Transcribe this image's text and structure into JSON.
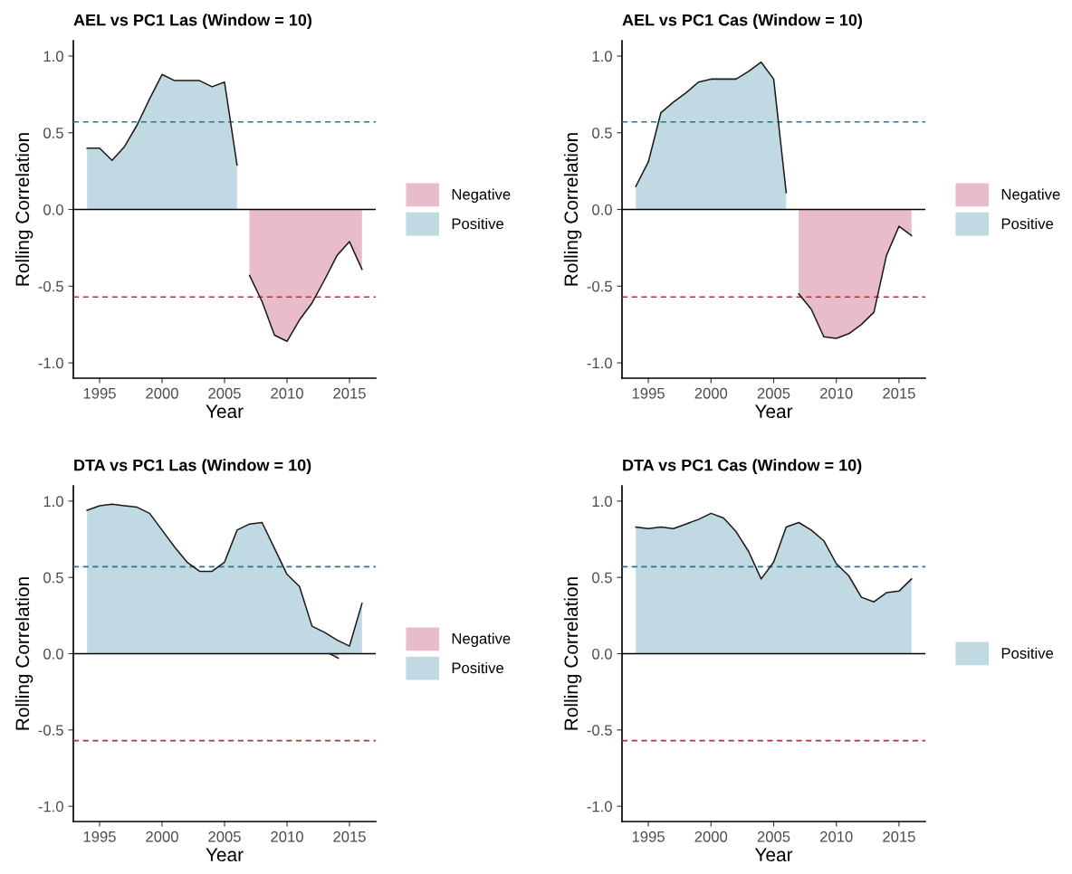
{
  "chart_data": [
    {
      "type": "area",
      "title": "AEL vs PC1 Las (Window = 10)",
      "xlabel": "Year",
      "ylabel": "Rolling Correlation",
      "x": [
        1994,
        1995,
        1996,
        1997,
        1998,
        1999,
        2000,
        2001,
        2002,
        2003,
        2004,
        2005,
        2006,
        2007,
        2008,
        2009,
        2010,
        2011,
        2012,
        2013,
        2014,
        2015,
        2016
      ],
      "series": [
        {
          "name": "Negative",
          "color": "#e8bccb",
          "values": [
            null,
            null,
            null,
            null,
            null,
            null,
            null,
            null,
            null,
            null,
            null,
            null,
            null,
            -0.43,
            -0.6,
            -0.82,
            -0.86,
            -0.72,
            -0.61,
            -0.46,
            -0.3,
            -0.21,
            -0.39
          ]
        },
        {
          "name": "Positive",
          "color": "#c0d9e3",
          "values": [
            0.4,
            0.4,
            0.32,
            0.41,
            0.55,
            0.72,
            0.88,
            0.84,
            0.84,
            0.84,
            0.8,
            0.83,
            0.29,
            null,
            null,
            null,
            null,
            null,
            null,
            null,
            null,
            null,
            null
          ]
        }
      ],
      "xlim": [
        1992.9,
        2017.1
      ],
      "ylim": [
        -1.1,
        1.1
      ],
      "xticks": [
        1995,
        2000,
        2005,
        2010,
        2015
      ],
      "yticks": [
        {
          "value": -1.0,
          "label": "-1.0"
        },
        {
          "value": -0.5,
          "label": "-0.5"
        },
        {
          "value": 0.0,
          "label": "0.0"
        },
        {
          "value": 0.5,
          "label": "0.5"
        },
        {
          "value": 1.0,
          "label": "1.0"
        }
      ],
      "ref_lines": [
        {
          "axis": "y",
          "value": 0.57,
          "color": "#2a7394",
          "line_style": "dashed"
        },
        {
          "axis": "y",
          "value": -0.57,
          "color": "#a83a3a",
          "line_style": "dashed"
        },
        {
          "axis": "y",
          "value": 0,
          "color": "#000000",
          "line_style": "solid"
        }
      ],
      "grid": false,
      "legend": "right"
    },
    {
      "type": "area",
      "title": "AEL vs PC1 Cas (Window = 10)",
      "xlabel": "Year",
      "ylabel": "Rolling Correlation",
      "x": [
        1994,
        1995,
        1996,
        1997,
        1998,
        1999,
        2000,
        2001,
        2002,
        2003,
        2004,
        2005,
        2006,
        2007,
        2008,
        2009,
        2010,
        2011,
        2012,
        2013,
        2014,
        2015,
        2016
      ],
      "series": [
        {
          "name": "Negative",
          "color": "#e8bccb",
          "values": [
            null,
            null,
            null,
            null,
            null,
            null,
            null,
            null,
            null,
            null,
            null,
            null,
            null,
            -0.55,
            -0.65,
            -0.83,
            -0.84,
            -0.81,
            -0.75,
            -0.67,
            -0.3,
            -0.11,
            -0.17
          ]
        },
        {
          "name": "Positive",
          "color": "#c0d9e3",
          "values": [
            0.15,
            0.31,
            0.63,
            0.7,
            0.76,
            0.83,
            0.85,
            0.85,
            0.85,
            0.9,
            0.96,
            0.85,
            0.11,
            null,
            null,
            null,
            null,
            null,
            null,
            null,
            null,
            null,
            null
          ]
        }
      ],
      "xlim": [
        1992.9,
        2017.1
      ],
      "ylim": [
        -1.1,
        1.1
      ],
      "xticks": [
        1995,
        2000,
        2005,
        2010,
        2015
      ],
      "yticks": [
        {
          "value": -1.0,
          "label": "-1.0"
        },
        {
          "value": -0.5,
          "label": "-0.5"
        },
        {
          "value": 0.0,
          "label": "0.0"
        },
        {
          "value": 0.5,
          "label": "0.5"
        },
        {
          "value": 1.0,
          "label": "1.0"
        }
      ],
      "ref_lines": [
        {
          "axis": "y",
          "value": 0.57,
          "color": "#2a7394",
          "line_style": "dashed"
        },
        {
          "axis": "y",
          "value": -0.57,
          "color": "#a83a3a",
          "line_style": "dashed"
        },
        {
          "axis": "y",
          "value": 0,
          "color": "#000000",
          "line_style": "solid"
        }
      ],
      "grid": false,
      "legend": "right"
    },
    {
      "type": "area",
      "title": "DTA vs PC1 Las (Window = 10)",
      "xlabel": "Year",
      "ylabel": "Rolling Correlation",
      "x": [
        1994,
        1995,
        1996,
        1997,
        1998,
        1999,
        2000,
        2001,
        2002,
        2003,
        2004,
        2005,
        2006,
        2007,
        2008,
        2009,
        2010,
        2011,
        2012,
        2013,
        2014,
        2015,
        2016
      ],
      "series": [
        {
          "name": "Negative",
          "color": "#e8bccb",
          "x": [
            2013.4,
            2014.1
          ],
          "values": [
            0.0,
            -0.03
          ]
        },
        {
          "name": "Positive",
          "color": "#c0d9e3",
          "values": [
            0.94,
            0.97,
            0.98,
            0.97,
            0.96,
            0.92,
            0.81,
            0.7,
            0.6,
            0.54,
            0.54,
            0.6,
            0.81,
            0.85,
            0.86,
            0.69,
            0.52,
            0.44,
            0.18,
            0.14,
            0.09,
            0.05,
            0.33
          ]
        }
      ],
      "xlim": [
        1992.9,
        2017.1
      ],
      "ylim": [
        -1.1,
        1.1
      ],
      "xticks": [
        1995,
        2000,
        2005,
        2010,
        2015
      ],
      "yticks": [
        {
          "value": -1.0,
          "label": "-1.0"
        },
        {
          "value": -0.5,
          "label": "-0.5"
        },
        {
          "value": 0.0,
          "label": "0.0"
        },
        {
          "value": 0.5,
          "label": "0.5"
        },
        {
          "value": 1.0,
          "label": "1.0"
        }
      ],
      "ref_lines": [
        {
          "axis": "y",
          "value": 0.57,
          "color": "#2a7394",
          "line_style": "dashed"
        },
        {
          "axis": "y",
          "value": -0.57,
          "color": "#a83a3a",
          "line_style": "dashed"
        },
        {
          "axis": "y",
          "value": 0,
          "color": "#000000",
          "line_style": "solid"
        }
      ],
      "grid": false,
      "legend": "right"
    },
    {
      "type": "area",
      "title": "DTA vs PC1 Cas (Window = 10)",
      "xlabel": "Year",
      "ylabel": "Rolling Correlation",
      "x": [
        1994,
        1995,
        1996,
        1997,
        1998,
        1999,
        2000,
        2001,
        2002,
        2003,
        2004,
        2005,
        2006,
        2007,
        2008,
        2009,
        2010,
        2011,
        2012,
        2013,
        2014,
        2015,
        2016
      ],
      "series": [
        {
          "name": "Positive",
          "color": "#c0d9e3",
          "values": [
            0.83,
            0.82,
            0.83,
            0.82,
            0.85,
            0.88,
            0.92,
            0.89,
            0.8,
            0.67,
            0.49,
            0.6,
            0.83,
            0.86,
            0.81,
            0.74,
            0.59,
            0.51,
            0.37,
            0.34,
            0.4,
            0.41,
            0.49
          ]
        }
      ],
      "xlim": [
        1992.9,
        2017.1
      ],
      "ylim": [
        -1.1,
        1.1
      ],
      "xticks": [
        1995,
        2000,
        2005,
        2010,
        2015
      ],
      "yticks": [
        {
          "value": -1.0,
          "label": "-1.0"
        },
        {
          "value": -0.5,
          "label": "-0.5"
        },
        {
          "value": 0.0,
          "label": "0.0"
        },
        {
          "value": 0.5,
          "label": "0.5"
        },
        {
          "value": 1.0,
          "label": "1.0"
        }
      ],
      "ref_lines": [
        {
          "axis": "y",
          "value": 0.57,
          "color": "#2a7394",
          "line_style": "dashed"
        },
        {
          "axis": "y",
          "value": -0.57,
          "color": "#a83a3a",
          "line_style": "dashed"
        },
        {
          "axis": "y",
          "value": 0,
          "color": "#000000",
          "line_style": "solid"
        }
      ],
      "grid": false,
      "legend": "right"
    }
  ]
}
